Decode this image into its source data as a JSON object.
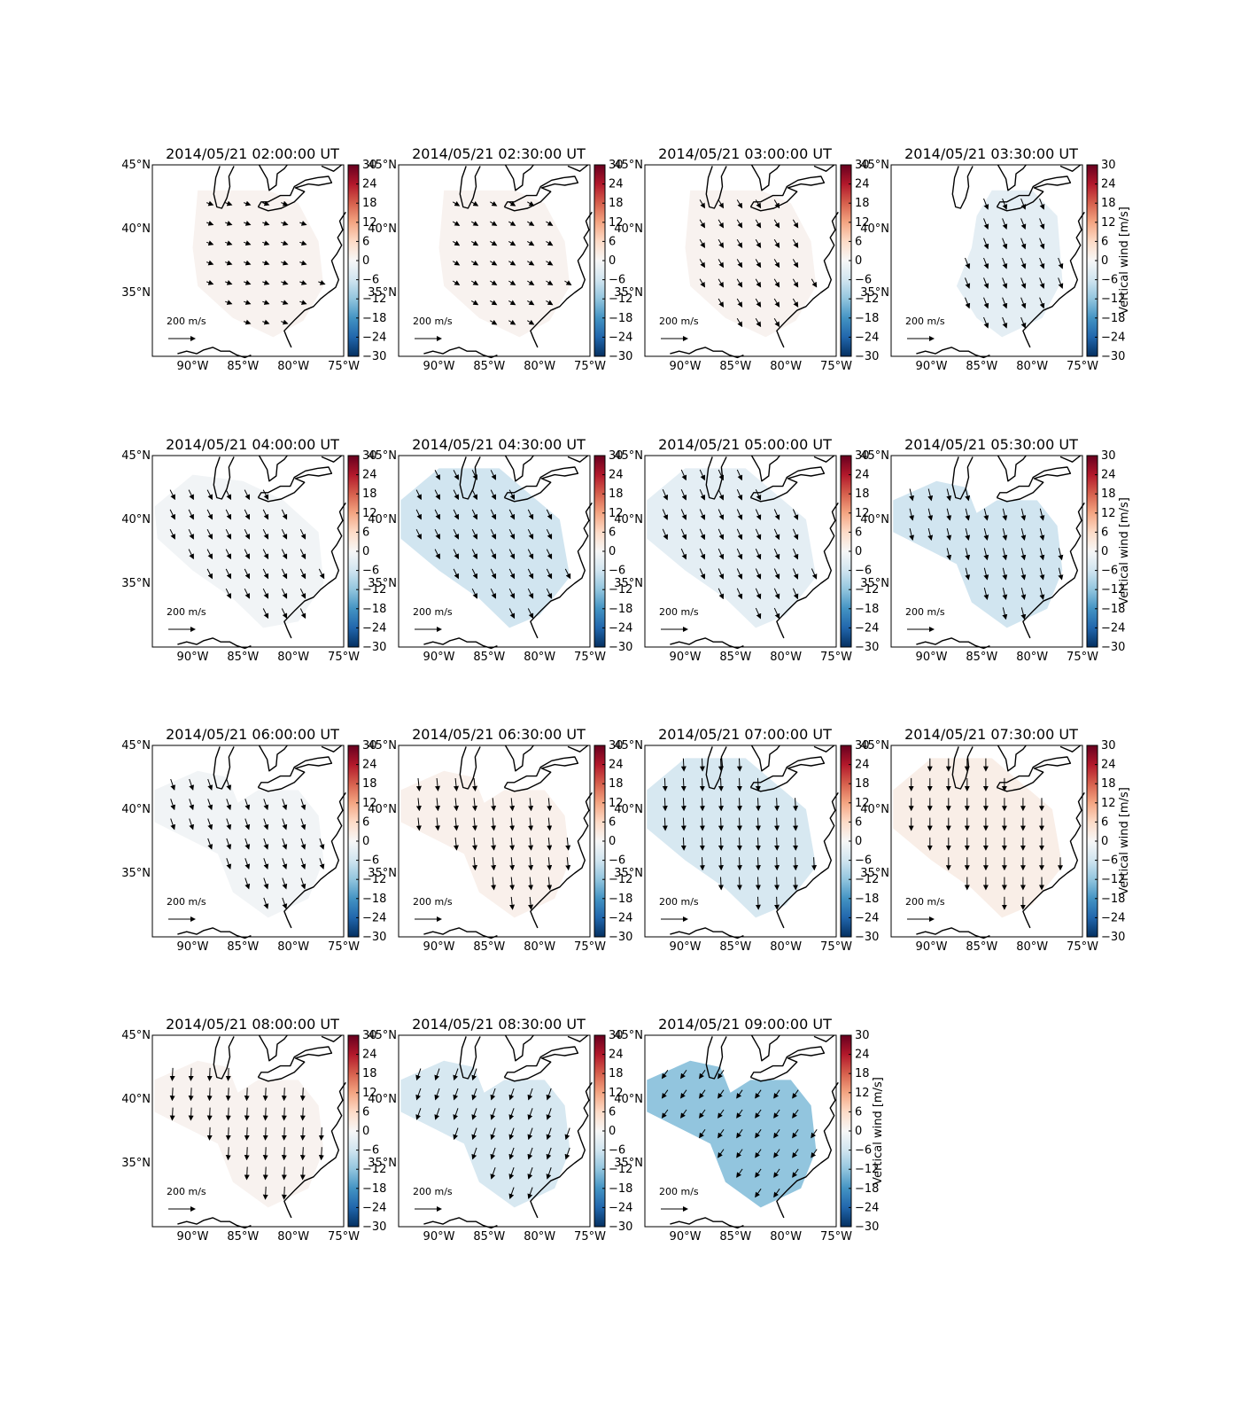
{
  "figure": {
    "lon_ticks": [
      "90°W",
      "85°W",
      "80°W",
      "75°W"
    ],
    "lat_ticks": [
      "45°N",
      "40°N",
      "35°N"
    ],
    "colorbar_ticks": [
      "30",
      "24",
      "18",
      "12",
      "6",
      "0",
      "−6",
      "−12",
      "−18",
      "−24",
      "−30"
    ],
    "colorbar_label": "Vertical wind [m/s]",
    "scale_label": "200 m/s",
    "colors": {
      "coast": "#000000",
      "cmap": [
        "#053061",
        "#2166ac",
        "#4393c3",
        "#92c5de",
        "#d1e5f0",
        "#f7f7f7",
        "#fddbc7",
        "#f4a582",
        "#d6604d",
        "#b2182b",
        "#67001f"
      ]
    }
  },
  "chart_data": [
    {
      "type": "quiver-map",
      "title": "2014/05/21 02:00:00 UT",
      "region": "center",
      "vertical_wind": 1,
      "wind_dir": [
        1.0,
        0.35
      ],
      "wind_mag": 0.55,
      "xlim": [
        -94,
        -75
      ],
      "ylim": [
        30,
        45
      ],
      "colorbar_range": [
        -30,
        30
      ]
    },
    {
      "type": "quiver-map",
      "title": "2014/05/21 02:30:00 UT",
      "region": "center",
      "vertical_wind": 1,
      "wind_dir": [
        1.0,
        0.6
      ],
      "wind_mag": 0.6,
      "xlim": [
        -94,
        -75
      ],
      "ylim": [
        30,
        45
      ],
      "colorbar_range": [
        -30,
        30
      ]
    },
    {
      "type": "quiver-map",
      "title": "2014/05/21 03:00:00 UT",
      "region": "center",
      "vertical_wind": 1,
      "wind_dir": [
        0.6,
        1.0
      ],
      "wind_mag": 0.75,
      "xlim": [
        -94,
        -75
      ],
      "ylim": [
        30,
        45
      ],
      "colorbar_range": [
        -30,
        30
      ]
    },
    {
      "type": "quiver-map",
      "title": "2014/05/21 03:30:00 UT",
      "region": "east",
      "vertical_wind": -3,
      "wind_dir": [
        0.4,
        1.0
      ],
      "wind_mag": 0.9,
      "xlim": [
        -94,
        -75
      ],
      "ylim": [
        30,
        45
      ],
      "colorbar_range": [
        -30,
        30
      ]
    },
    {
      "type": "quiver-map",
      "title": "2014/05/21 04:00:00 UT",
      "region": "wide",
      "vertical_wind": -1,
      "wind_dir": [
        0.5,
        1.0
      ],
      "wind_mag": 0.85,
      "xlim": [
        -94,
        -75
      ],
      "ylim": [
        30,
        45
      ],
      "colorbar_range": [
        -30,
        30
      ]
    },
    {
      "type": "quiver-map",
      "title": "2014/05/21 04:30:00 UT",
      "region": "widenorth",
      "vertical_wind": -6,
      "wind_dir": [
        0.5,
        1.0
      ],
      "wind_mag": 0.85,
      "xlim": [
        -94,
        -75
      ],
      "ylim": [
        30,
        45
      ],
      "colorbar_range": [
        -30,
        30
      ]
    },
    {
      "type": "quiver-map",
      "title": "2014/05/21 05:00:00 UT",
      "region": "widenorth",
      "vertical_wind": -3,
      "wind_dir": [
        0.45,
        1.0
      ],
      "wind_mag": 0.9,
      "xlim": [
        -94,
        -75
      ],
      "ylim": [
        30,
        45
      ],
      "colorbar_range": [
        -30,
        30
      ]
    },
    {
      "type": "quiver-map",
      "title": "2014/05/21 05:30:00 UT",
      "region": "twolobe",
      "vertical_wind": -6,
      "wind_dir": [
        0.25,
        1.0
      ],
      "wind_mag": 0.95,
      "xlim": [
        -94,
        -75
      ],
      "ylim": [
        30,
        45
      ],
      "colorbar_range": [
        -30,
        30
      ]
    },
    {
      "type": "quiver-map",
      "title": "2014/05/21 06:00:00 UT",
      "region": "twolobe",
      "vertical_wind": -1,
      "wind_dir": [
        0.35,
        1.0
      ],
      "wind_mag": 0.9,
      "xlim": [
        -94,
        -75
      ],
      "ylim": [
        30,
        45
      ],
      "colorbar_range": [
        -30,
        30
      ]
    },
    {
      "type": "quiver-map",
      "title": "2014/05/21 06:30:00 UT",
      "region": "twolobe",
      "vertical_wind": 1.5,
      "wind_dir": [
        0.1,
        1.0
      ],
      "wind_mag": 1.0,
      "xlim": [
        -94,
        -75
      ],
      "ylim": [
        30,
        45
      ],
      "colorbar_range": [
        -30,
        30
      ]
    },
    {
      "type": "quiver-map",
      "title": "2014/05/21 07:00:00 UT",
      "region": "widenorth",
      "vertical_wind": -5,
      "wind_dir": [
        0.05,
        1.0
      ],
      "wind_mag": 1.0,
      "xlim": [
        -94,
        -75
      ],
      "ylim": [
        30,
        45
      ],
      "colorbar_range": [
        -30,
        30
      ]
    },
    {
      "type": "quiver-map",
      "title": "2014/05/21 07:30:00 UT",
      "region": "widenorth",
      "vertical_wind": 2,
      "wind_dir": [
        0.0,
        1.0
      ],
      "wind_mag": 1.0,
      "xlim": [
        -94,
        -75
      ],
      "ylim": [
        30,
        45
      ],
      "colorbar_range": [
        -30,
        30
      ]
    },
    {
      "type": "quiver-map",
      "title": "2014/05/21 08:00:00 UT",
      "region": "twolobe",
      "vertical_wind": 1,
      "wind_dir": [
        -0.05,
        1.0
      ],
      "wind_mag": 1.0,
      "xlim": [
        -94,
        -75
      ],
      "ylim": [
        30,
        45
      ],
      "colorbar_range": [
        -30,
        30
      ]
    },
    {
      "type": "quiver-map",
      "title": "2014/05/21 08:30:00 UT",
      "region": "twolobe",
      "vertical_wind": -5,
      "wind_dir": [
        -0.35,
        1.0
      ],
      "wind_mag": 0.95,
      "xlim": [
        -94,
        -75
      ],
      "ylim": [
        30,
        45
      ],
      "colorbar_range": [
        -30,
        30
      ]
    },
    {
      "type": "quiver-map",
      "title": "2014/05/21 09:00:00 UT",
      "region": "twolobe",
      "vertical_wind": -12,
      "wind_dir": [
        -0.7,
        1.0
      ],
      "wind_mag": 0.8,
      "xlim": [
        -94,
        -75
      ],
      "ylim": [
        30,
        45
      ],
      "colorbar_range": [
        -30,
        30
      ]
    }
  ]
}
